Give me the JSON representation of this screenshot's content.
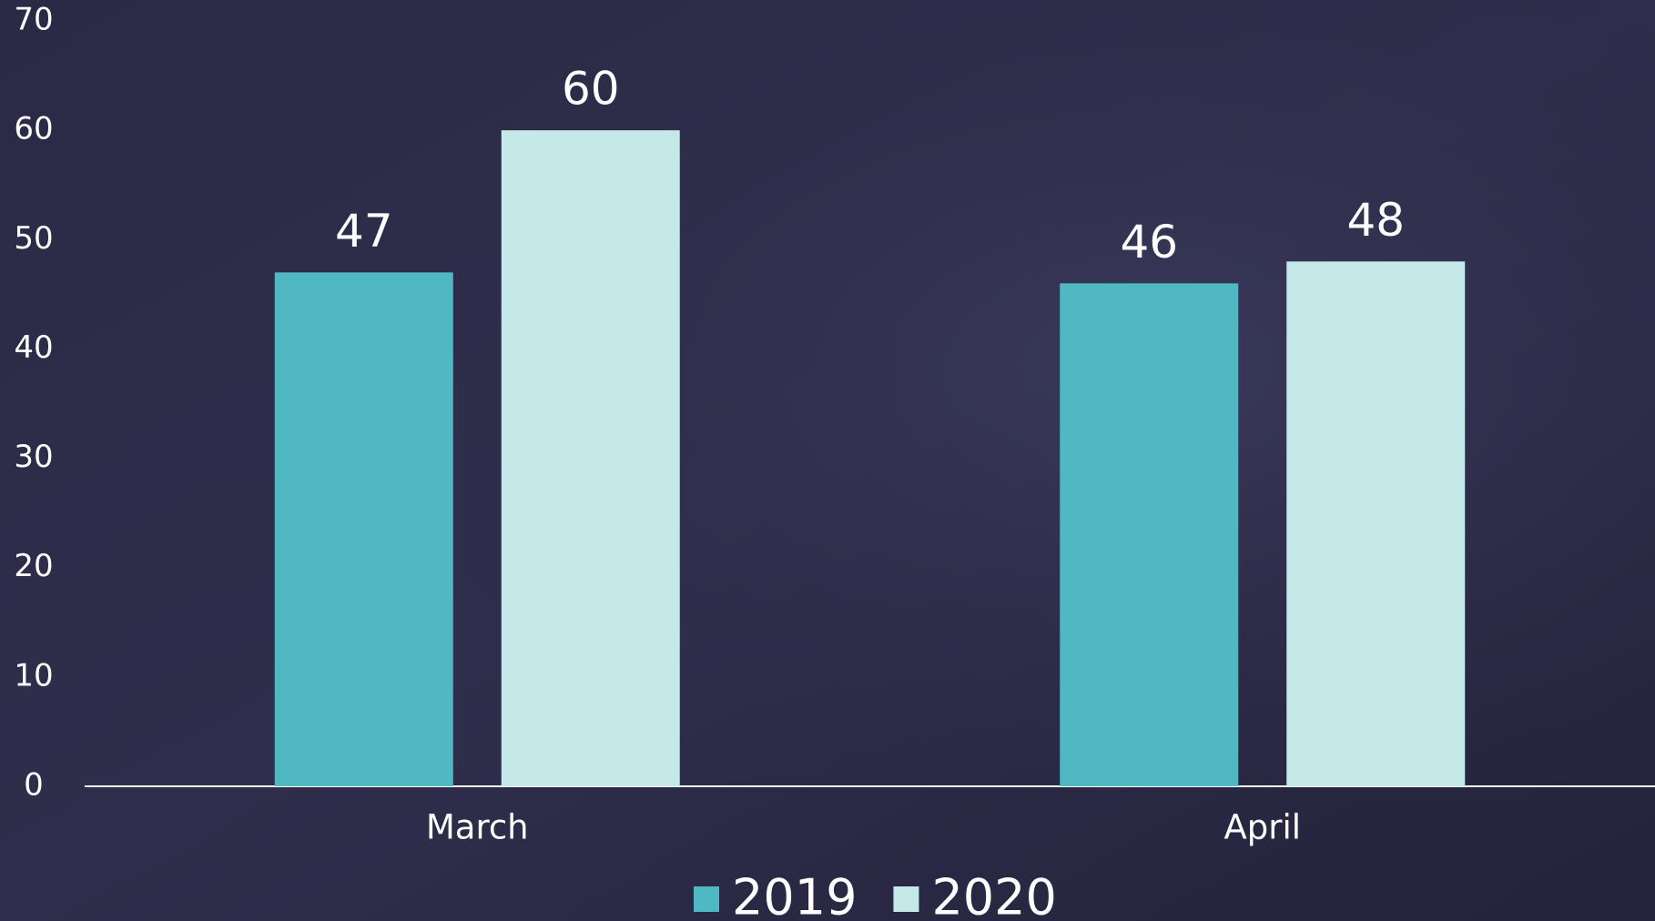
{
  "chart_data": {
    "type": "bar",
    "categories": [
      "March",
      "April"
    ],
    "series": [
      {
        "name": "2019",
        "color": "#4fb8c3",
        "values": [
          47,
          46
        ]
      },
      {
        "name": "2020",
        "color": "#c5e8e8",
        "values": [
          60,
          48
        ]
      }
    ],
    "ylim": [
      0,
      70
    ],
    "yticks": [
      0,
      10,
      20,
      30,
      40,
      50,
      60,
      70
    ],
    "grid": false,
    "legend": "bottom"
  }
}
